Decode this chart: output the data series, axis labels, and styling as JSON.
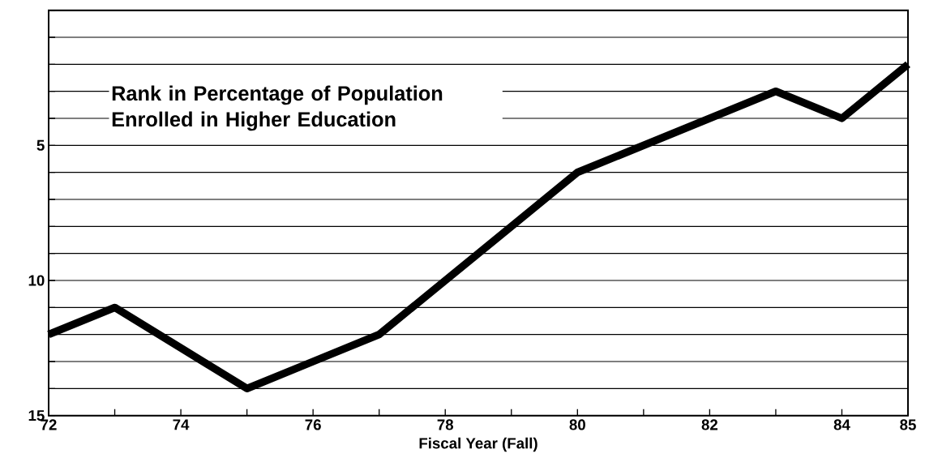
{
  "chart_data": {
    "type": "line",
    "title": "Rank in Percentage of Population Enrolled in Higher Education",
    "xlabel": "Fiscal Year (Fall)",
    "x": [
      72,
      73,
      74,
      75,
      76,
      77,
      78,
      79,
      80,
      81,
      82,
      83,
      84,
      85
    ],
    "series": [
      {
        "color": "#000000",
        "values": [
          12,
          11,
          12.5,
          14,
          13,
          12,
          10,
          8,
          6,
          5,
          4,
          3,
          4,
          2
        ]
      }
    ],
    "xlim": [
      72,
      85
    ],
    "ylim": [
      15,
      0
    ],
    "xticks": [
      72,
      {
        "value": 73,
        "label": null
      },
      74,
      {
        "value": 75,
        "label": null
      },
      76,
      {
        "value": 77,
        "label": null
      },
      78,
      {
        "value": 79,
        "label": null
      },
      80,
      {
        "value": 81,
        "label": null
      },
      82,
      {
        "value": 83,
        "label": null
      },
      84,
      85
    ],
    "yticks": [
      {
        "value": 0,
        "label": null
      },
      {
        "value": 1,
        "label": null
      },
      {
        "value": 2,
        "label": null
      },
      {
        "value": 3,
        "label": null
      },
      {
        "value": 4,
        "label": null
      },
      5,
      {
        "value": 6,
        "label": null
      },
      {
        "value": 7,
        "label": null
      },
      {
        "value": 8,
        "label": null
      },
      {
        "value": 9,
        "label": null
      },
      10,
      {
        "value": 11,
        "label": null
      },
      {
        "value": 12,
        "label": null
      },
      {
        "value": 13,
        "label": null
      },
      {
        "value": 14,
        "label": null
      },
      15
    ],
    "grid": "y",
    "marker": "none",
    "line_style": "solid"
  }
}
